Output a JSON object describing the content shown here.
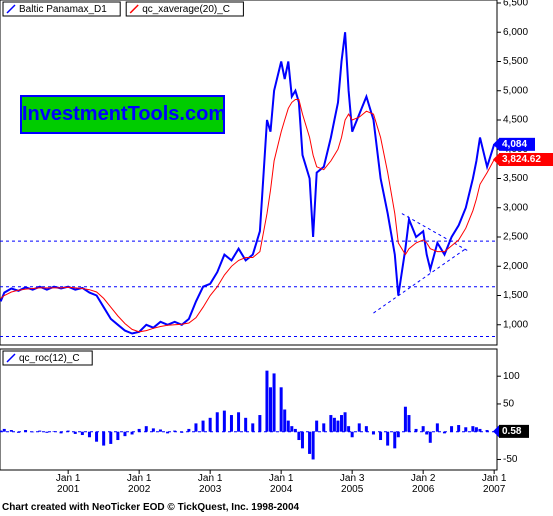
{
  "watermark": "InvestmentTools.com",
  "footer": "Chart created with NeoTicker EOD © TickQuest, Inc. 1998-2004",
  "chart_data": [
    {
      "type": "line",
      "xlim": [
        2000.04,
        2007.04
      ],
      "ylim": [
        654,
        6551
      ],
      "yticks": [
        {
          "value": 1000,
          "label": "1,000"
        },
        {
          "value": 1500,
          "label": "1,500"
        },
        {
          "value": 2000,
          "label": "2,000"
        },
        {
          "value": 2500,
          "label": "2,500"
        },
        {
          "value": 3000,
          "label": "3,000"
        },
        {
          "value": 3500,
          "label": "3,500"
        },
        {
          "value": 4000,
          "label": "4,000"
        },
        {
          "value": 4500,
          "label": "4,500"
        },
        {
          "value": 5000,
          "label": "5,000"
        },
        {
          "value": 5500,
          "label": "5,500"
        },
        {
          "value": 6000,
          "label": "6,000"
        },
        {
          "value": 6500,
          "label": "6,500"
        }
      ],
      "hlines": [
        2430,
        1650,
        800
      ],
      "trendlines": [
        {
          "x": [
            2005.3,
            2006.6
          ],
          "y": [
            1200,
            2300
          ]
        },
        {
          "x": [
            2005.7,
            2006.65
          ],
          "y": [
            2900,
            2250
          ]
        }
      ],
      "x": [
        2000.05,
        2000.1,
        2000.2,
        2000.3,
        2000.4,
        2000.5,
        2000.6,
        2000.7,
        2000.8,
        2000.9,
        2001.0,
        2001.1,
        2001.2,
        2001.3,
        2001.4,
        2001.5,
        2001.6,
        2001.7,
        2001.8,
        2001.9,
        2002.0,
        2002.1,
        2002.2,
        2002.3,
        2002.4,
        2002.5,
        2002.6,
        2002.7,
        2002.8,
        2002.9,
        2003.0,
        2003.1,
        2003.2,
        2003.3,
        2003.4,
        2003.5,
        2003.6,
        2003.7,
        2003.8,
        2003.85,
        2003.9,
        2004.0,
        2004.05,
        2004.1,
        2004.15,
        2004.2,
        2004.25,
        2004.3,
        2004.4,
        2004.45,
        2004.5,
        2004.6,
        2004.7,
        2004.75,
        2004.8,
        2004.85,
        2004.9,
        2004.95,
        2005.0,
        2005.1,
        2005.2,
        2005.3,
        2005.4,
        2005.5,
        2005.6,
        2005.65,
        2005.75,
        2005.8,
        2005.9,
        2006.0,
        2006.05,
        2006.1,
        2006.2,
        2006.3,
        2006.4,
        2006.5,
        2006.6,
        2006.7,
        2006.75,
        2006.8,
        2006.9,
        2007.0
      ],
      "series": [
        {
          "name": "Baltic Panamax_D1",
          "color": "#0000ff",
          "last_label": "4,084",
          "values": [
            1400,
            1550,
            1620,
            1580,
            1640,
            1600,
            1650,
            1600,
            1650,
            1620,
            1650,
            1600,
            1630,
            1550,
            1500,
            1300,
            1100,
            1000,
            900,
            850,
            880,
            1000,
            950,
            1050,
            1000,
            1050,
            1000,
            1100,
            1400,
            1650,
            1700,
            1900,
            2200,
            2100,
            2300,
            2100,
            2200,
            2600,
            4500,
            4300,
            5000,
            5500,
            5200,
            5500,
            4900,
            5000,
            4800,
            3900,
            3500,
            2500,
            3600,
            3700,
            4200,
            4500,
            4800,
            5500,
            6000,
            5000,
            4300,
            4600,
            4900,
            4500,
            3500,
            2900,
            2200,
            1500,
            2300,
            2800,
            2500,
            2600,
            2200,
            1950,
            2400,
            2200,
            2500,
            2700,
            3000,
            3500,
            3800,
            4200,
            3700,
            4084
          ]
        },
        {
          "name": "qc_xaverage(20)_C",
          "color": "#ff0000",
          "last_label": "3,824.62",
          "values": [
            1450,
            1500,
            1560,
            1590,
            1610,
            1620,
            1630,
            1630,
            1630,
            1630,
            1640,
            1630,
            1620,
            1600,
            1560,
            1450,
            1300,
            1150,
            1020,
            920,
            880,
            900,
            940,
            970,
            990,
            1000,
            1010,
            1030,
            1120,
            1300,
            1500,
            1650,
            1850,
            2000,
            2100,
            2150,
            2150,
            2250,
            2900,
            3300,
            3800,
            4300,
            4500,
            4700,
            4800,
            4850,
            4850,
            4600,
            4200,
            3900,
            3700,
            3650,
            3800,
            3900,
            4000,
            4200,
            4500,
            4600,
            4500,
            4550,
            4650,
            4600,
            4200,
            3600,
            2900,
            2400,
            2200,
            2300,
            2400,
            2450,
            2400,
            2300,
            2250,
            2250,
            2350,
            2450,
            2650,
            2950,
            3150,
            3400,
            3600,
            3824.62
          ]
        }
      ]
    },
    {
      "type": "bar",
      "xlim": [
        2000.04,
        2007.04
      ],
      "ylim": [
        -69,
        149
      ],
      "yticks": [
        -50,
        0,
        50,
        100
      ],
      "hlines": [
        0
      ],
      "xticks": [
        {
          "value": 2001,
          "label": "Jan 1\n2001"
        },
        {
          "value": 2002,
          "label": "Jan 1\n2002"
        },
        {
          "value": 2003,
          "label": "Jan 1\n2003"
        },
        {
          "value": 2004,
          "label": "Jan 1\n2004"
        },
        {
          "value": 2005,
          "label": "Jan 3\n2005"
        },
        {
          "value": 2006,
          "label": "Jan 2\n2006"
        },
        {
          "value": 2007,
          "label": "Jan 1\n2007"
        }
      ],
      "x": [
        2000.05,
        2000.1,
        2000.2,
        2000.3,
        2000.4,
        2000.5,
        2000.6,
        2000.7,
        2000.8,
        2000.9,
        2001.0,
        2001.1,
        2001.2,
        2001.3,
        2001.4,
        2001.5,
        2001.6,
        2001.7,
        2001.8,
        2001.9,
        2002.0,
        2002.1,
        2002.2,
        2002.3,
        2002.4,
        2002.5,
        2002.6,
        2002.7,
        2002.8,
        2002.9,
        2003.0,
        2003.1,
        2003.2,
        2003.3,
        2003.4,
        2003.5,
        2003.6,
        2003.7,
        2003.8,
        2003.85,
        2003.9,
        2004.0,
        2004.05,
        2004.1,
        2004.15,
        2004.2,
        2004.25,
        2004.3,
        2004.4,
        2004.45,
        2004.5,
        2004.6,
        2004.7,
        2004.75,
        2004.8,
        2004.85,
        2004.9,
        2004.95,
        2005.0,
        2005.1,
        2005.2,
        2005.3,
        2005.4,
        2005.5,
        2005.6,
        2005.65,
        2005.75,
        2005.8,
        2005.9,
        2006.0,
        2006.05,
        2006.1,
        2006.2,
        2006.3,
        2006.4,
        2006.5,
        2006.6,
        2006.7,
        2006.75,
        2006.8,
        2006.9,
        2007.0
      ],
      "series": [
        {
          "name": "qc_roc(12)_C",
          "color": "#0000ff",
          "last_label": "0.58",
          "values": [
            2,
            5,
            3,
            -2,
            3,
            -1,
            2,
            -2,
            1,
            -3,
            2,
            -4,
            -6,
            -10,
            -18,
            -25,
            -22,
            -15,
            -8,
            -5,
            5,
            10,
            6,
            4,
            -3,
            2,
            -2,
            5,
            15,
            20,
            25,
            35,
            38,
            30,
            35,
            25,
            15,
            30,
            110,
            80,
            105,
            80,
            40,
            20,
            10,
            5,
            -15,
            -30,
            -40,
            -50,
            20,
            15,
            30,
            25,
            20,
            30,
            35,
            10,
            -10,
            15,
            10,
            -5,
            -15,
            -25,
            -30,
            -10,
            45,
            30,
            5,
            10,
            -5,
            -20,
            15,
            -3,
            10,
            12,
            8,
            10,
            8,
            5,
            3,
            0.58
          ]
        }
      ]
    }
  ]
}
